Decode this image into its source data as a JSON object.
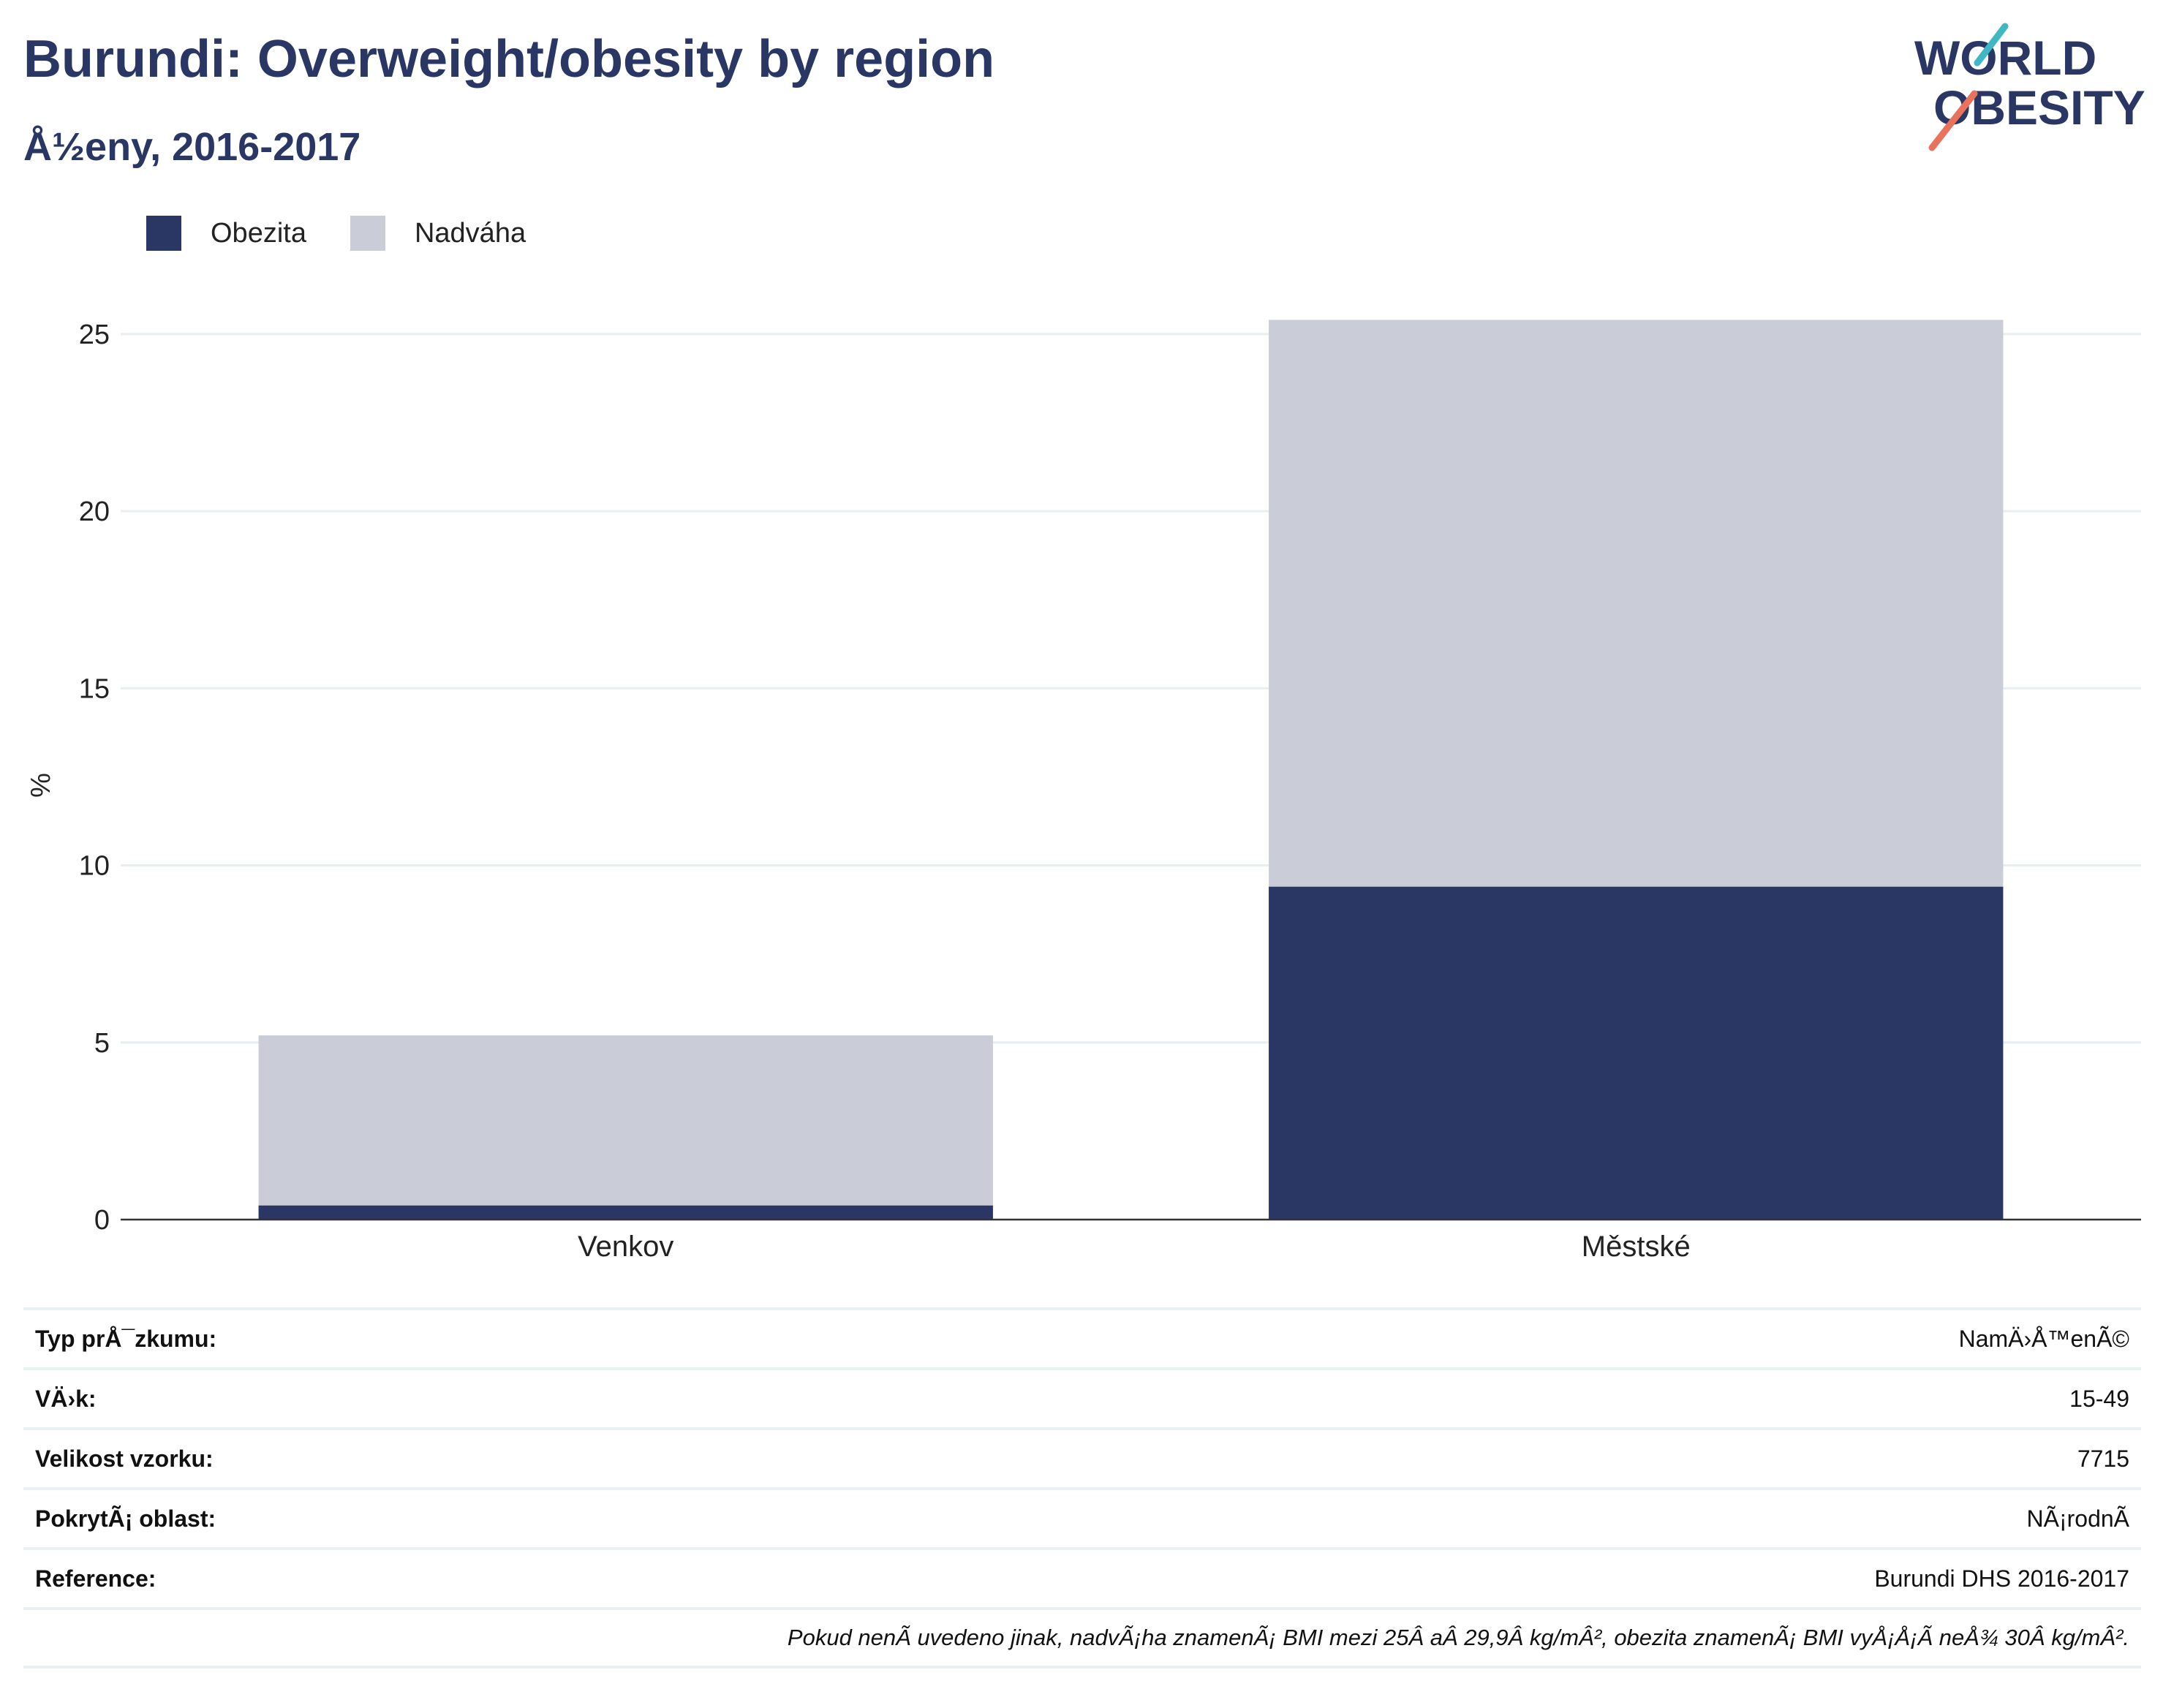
{
  "header": {
    "title": "Burundi: Overweight/obesity by region",
    "subtitle": "Å½eny, 2016-2017"
  },
  "logo": {
    "line1": "WORLD",
    "line2": "OBESITY"
  },
  "colors": {
    "obesity": "#2a3663",
    "overweight": "#cacdd8",
    "text_dark": "#2a3663",
    "accent_teal": "#3fb8c4",
    "accent_coral": "#e8725c"
  },
  "chart_data": {
    "type": "bar",
    "stacked": true,
    "categories": [
      "Venkov",
      "Městské"
    ],
    "series": [
      {
        "name": "Obezita",
        "values": [
          0.4,
          9.4
        ]
      },
      {
        "name": "Nadváha",
        "values": [
          4.8,
          16.0
        ]
      }
    ],
    "ylabel": "%",
    "ylim": [
      0,
      27
    ],
    "yticks": [
      0,
      5,
      10,
      15,
      20,
      25
    ],
    "grid": true,
    "legend_position": "top-left"
  },
  "info": [
    {
      "label": "Typ prÅ¯zkumu:",
      "value": "NamÄ›Å™enÃ©"
    },
    {
      "label": "VÄ›k:",
      "value": "15-49"
    },
    {
      "label": "Velikost vzorku:",
      "value": "7715"
    },
    {
      "label": "PokrytÃ¡ oblast:",
      "value": "NÃ¡rodnÃ"
    },
    {
      "label": "Reference:",
      "value": "Burundi DHS 2016-2017"
    }
  ],
  "note": "Pokud nenÃ uvedeno jinak, nadvÃ¡ha znamenÃ¡ BMI mezi 25Â aÂ 29,9Â kg/mÂ², obezita znamenÃ¡ BMI vyÅ¡Å¡Ã neÅ¾ 30Â kg/mÂ²."
}
